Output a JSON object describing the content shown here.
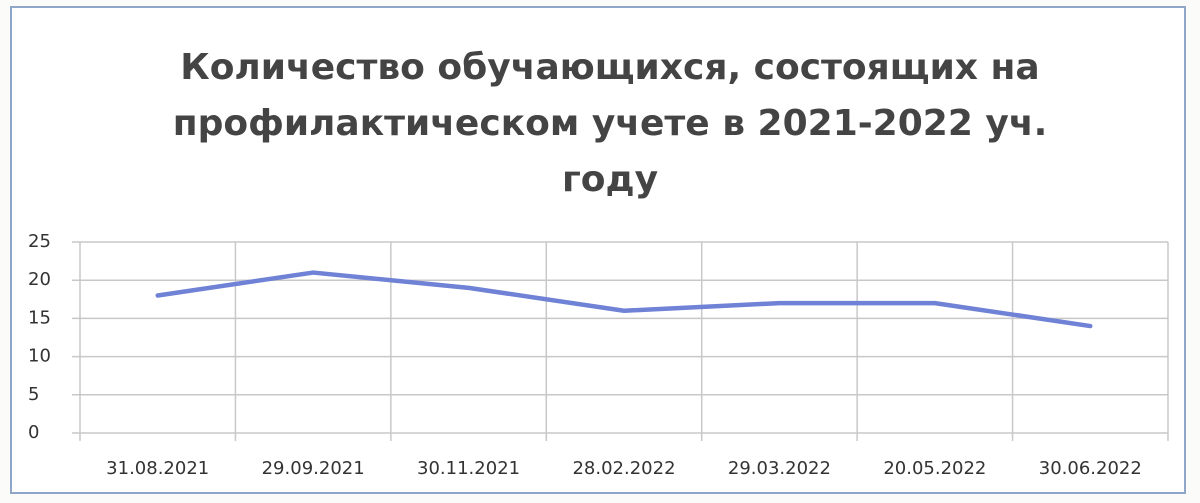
{
  "chart_data": {
    "type": "line",
    "title": "Количество обучающихся, состоящих на профилактическом учете в 2021-2022 уч. году",
    "categories": [
      "31.08.2021",
      "29.09.2021",
      "30.11.2021",
      "28.02.2022",
      "29.03.2022",
      "20.05.2022",
      "30.06.2022"
    ],
    "series": [
      {
        "name": "Количество обучающихся",
        "color": "#6f82d6",
        "values": [
          18,
          21,
          19,
          16,
          17,
          17,
          14
        ]
      }
    ],
    "ylim": [
      0,
      25
    ],
    "yticks": [
      0,
      5,
      10,
      15,
      20,
      25
    ],
    "grid": true
  }
}
